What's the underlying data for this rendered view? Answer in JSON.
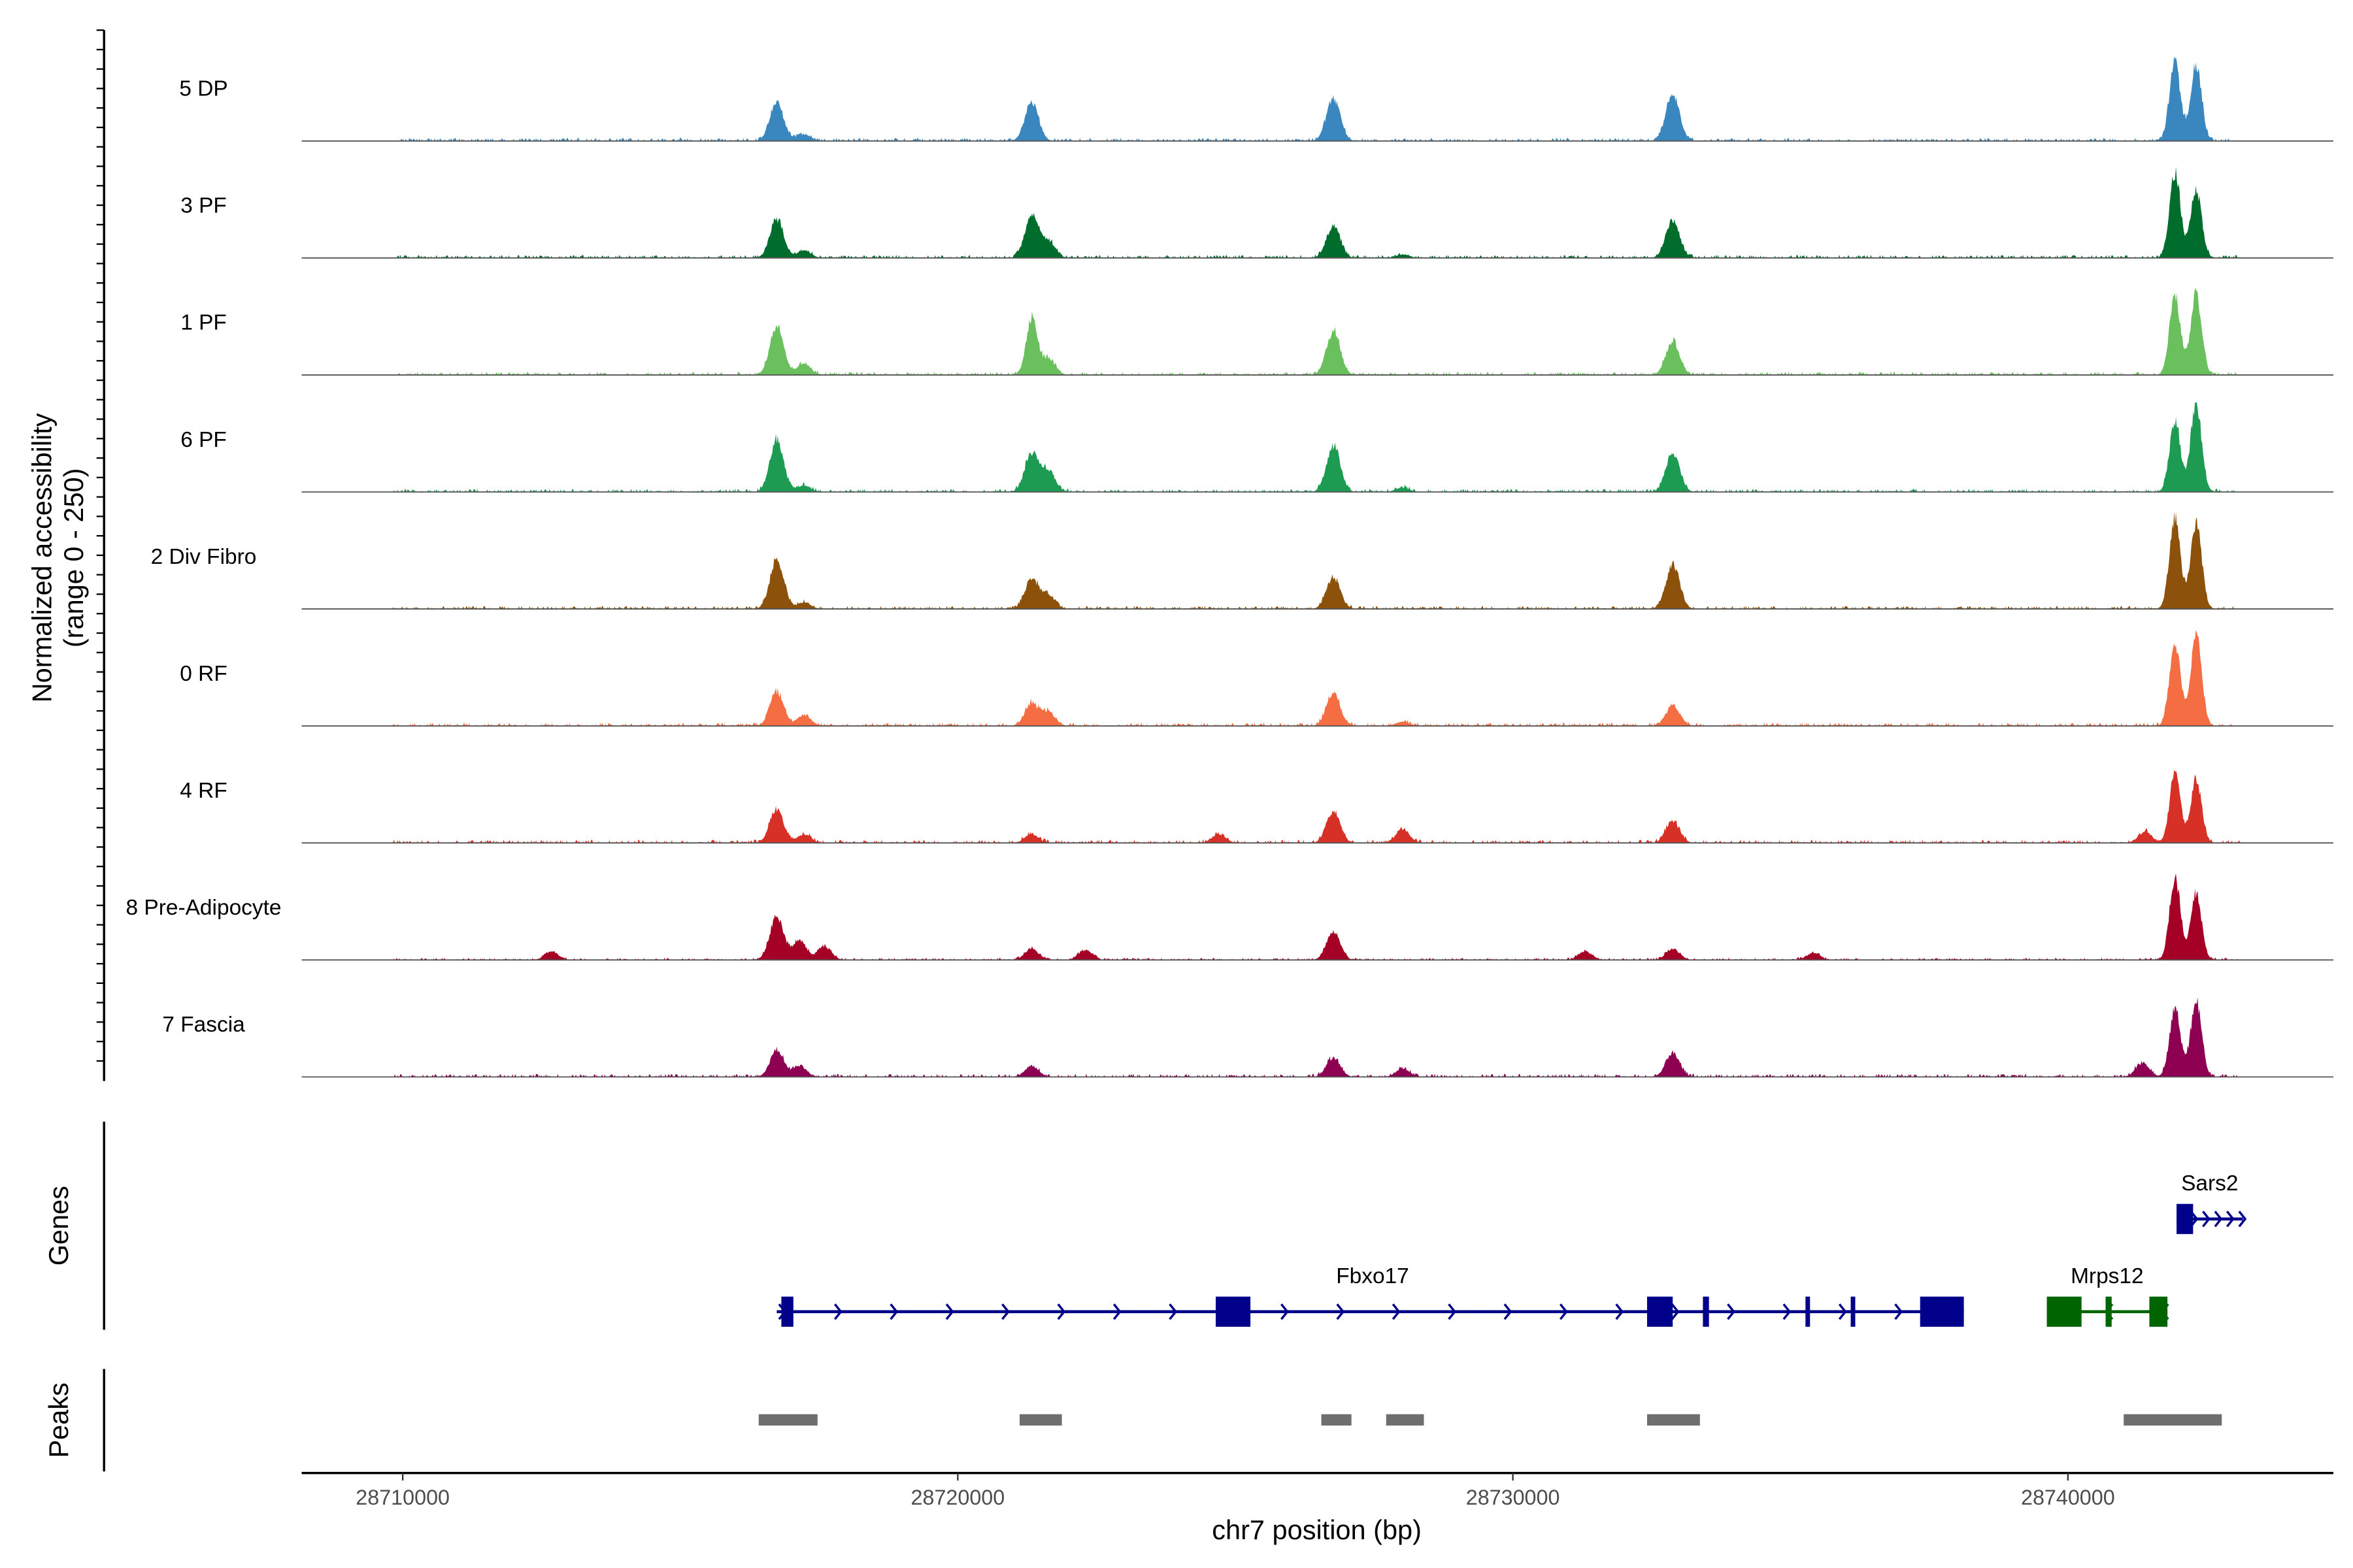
{
  "chart_data": {
    "type": "area",
    "y_axis_title": "Normalized accessibility",
    "y_axis_subtitle": "(range 0 - 250)",
    "ylim": [
      0,
      250
    ],
    "x_axis_title": "chr7 position (bp)",
    "xlim": [
      28708180,
      28744780
    ],
    "x_ticks": [
      "28710000",
      "28720000",
      "28730000",
      "28740000"
    ],
    "tracks": [
      {
        "name": "5 DP",
        "color": "#3A87C0",
        "peaks": [
          [
            28716739,
            91
          ],
          [
            28717228,
            15
          ],
          [
            28721332,
            88
          ],
          [
            28726766,
            101
          ],
          [
            28732880,
            110
          ],
          [
            28741929,
            185
          ],
          [
            28742310,
            182
          ]
        ]
      },
      {
        "name": "3 PF",
        "color": "#006D2C",
        "peaks": [
          [
            28716739,
            91
          ],
          [
            28717228,
            18
          ],
          [
            28721332,
            101
          ],
          [
            28721630,
            39
          ],
          [
            28726766,
            75
          ],
          [
            28728016,
            8
          ],
          [
            28732880,
            88
          ],
          [
            28741929,
            201
          ],
          [
            28742310,
            162
          ]
        ]
      },
      {
        "name": "1 PF",
        "color": "#6BC05E",
        "peaks": [
          [
            28716739,
            117
          ],
          [
            28717228,
            26
          ],
          [
            28721332,
            136
          ],
          [
            28721630,
            39
          ],
          [
            28726766,
            104
          ],
          [
            28732880,
            81
          ],
          [
            28741929,
            185
          ],
          [
            28742310,
            195
          ]
        ]
      },
      {
        "name": "6 PF",
        "color": "#1E9B53",
        "peaks": [
          [
            28716739,
            123
          ],
          [
            28717228,
            15
          ],
          [
            28721332,
            91
          ],
          [
            28721630,
            49
          ],
          [
            28726766,
            110
          ],
          [
            28728016,
            10
          ],
          [
            28732880,
            94
          ],
          [
            28741929,
            169
          ],
          [
            28742310,
            211
          ]
        ]
      },
      {
        "name": "2 Div Fibro",
        "color": "#8C510A",
        "peaks": [
          [
            28716739,
            117
          ],
          [
            28717228,
            15
          ],
          [
            28721332,
            71
          ],
          [
            28721630,
            32
          ],
          [
            28726766,
            75
          ],
          [
            28732880,
            104
          ],
          [
            28741929,
            214
          ],
          [
            28742310,
            208
          ]
        ]
      },
      {
        "name": "0 RF",
        "color": "#F46D43",
        "peaks": [
          [
            28716739,
            81
          ],
          [
            28717228,
            26
          ],
          [
            28721332,
            52
          ],
          [
            28721630,
            32
          ],
          [
            28726766,
            78
          ],
          [
            28728016,
            10
          ],
          [
            28732880,
            49
          ],
          [
            28741929,
            195
          ],
          [
            28742310,
            208
          ]
        ]
      },
      {
        "name": "4 RF",
        "color": "#D73027",
        "peaks": [
          [
            28716739,
            81
          ],
          [
            28717228,
            20
          ],
          [
            28721332,
            20
          ],
          [
            28724700,
            20
          ],
          [
            28726766,
            75
          ],
          [
            28728016,
            32
          ],
          [
            28732880,
            52
          ],
          [
            28741390,
            26
          ],
          [
            28741929,
            162
          ],
          [
            28742310,
            150
          ]
        ]
      },
      {
        "name": "8 Pre-Adipocyte",
        "color": "#A50026",
        "peaks": [
          [
            28712680,
            20
          ],
          [
            28716739,
            104
          ],
          [
            28717150,
            45
          ],
          [
            28717600,
            32
          ],
          [
            28721332,
            26
          ],
          [
            28722300,
            23
          ],
          [
            28726766,
            65
          ],
          [
            28731300,
            20
          ],
          [
            28732880,
            26
          ],
          [
            28735410,
            16
          ],
          [
            28741929,
            195
          ],
          [
            28742310,
            156
          ]
        ]
      },
      {
        "name": "7 Fascia",
        "color": "#8E0152",
        "peaks": [
          [
            28716739,
            62
          ],
          [
            28717150,
            26
          ],
          [
            28721332,
            26
          ],
          [
            28726766,
            45
          ],
          [
            28728016,
            20
          ],
          [
            28732880,
            58
          ],
          [
            28741340,
            32
          ],
          [
            28741929,
            162
          ],
          [
            28742310,
            178
          ]
        ]
      }
    ],
    "genes_panel_label": "Genes",
    "genes": [
      {
        "name": "Fbxo17",
        "strand": "+",
        "color": "#00008B",
        "start": 28716739,
        "end": 28738125,
        "exons": [
          [
            28716821,
            28717038
          ],
          [
            28724647,
            28725272
          ],
          [
            28732418,
            28732880
          ],
          [
            28733424,
            28733533
          ],
          [
            28735272,
            28735353
          ],
          [
            28736087,
            28736168
          ],
          [
            28737337,
            28738125
          ]
        ]
      },
      {
        "name": "Mrps12",
        "strand": "-",
        "color": "#006400",
        "start": 28739620,
        "end": 28741793,
        "exons": [
          [
            28739620,
            28740245
          ],
          [
            28740679,
            28740788
          ],
          [
            28741467,
            28741793
          ]
        ]
      },
      {
        "name": "Sars2",
        "strand": "+",
        "color": "#00008B",
        "start": 28741957,
        "end": 28743152,
        "exons": [
          [
            28741957,
            28742255
          ]
        ]
      }
    ],
    "peaks_panel_label": "Peaks",
    "peaks_color": "#6E6E6E",
    "called_peaks": [
      [
        28716413,
        28717473
      ],
      [
        28721114,
        28721875
      ],
      [
        28726549,
        28727092
      ],
      [
        28727717,
        28728397
      ],
      [
        28732418,
        28733370
      ],
      [
        28741005,
        28742772
      ]
    ]
  }
}
